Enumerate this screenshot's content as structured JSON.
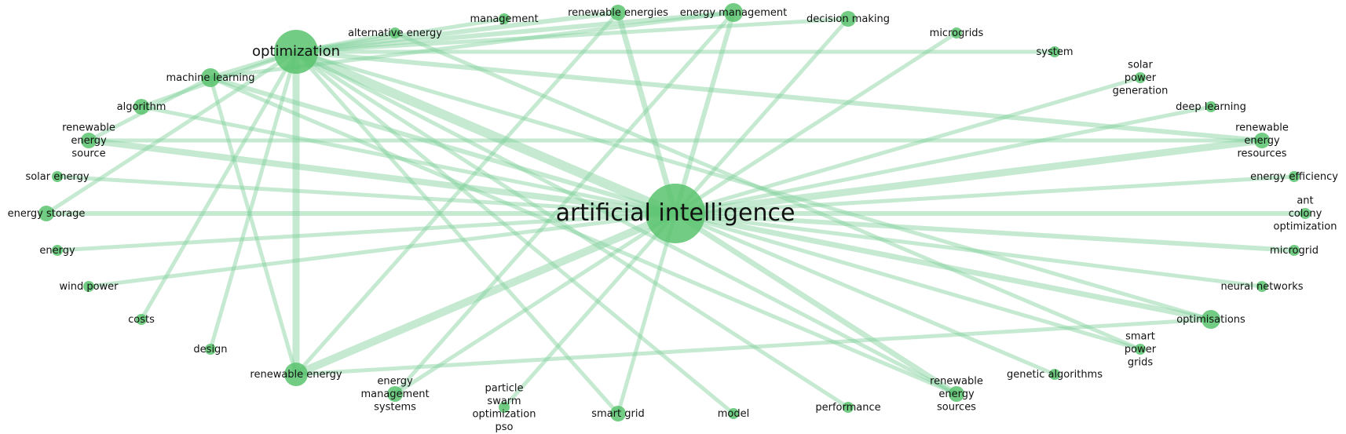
{
  "network": {
    "node_color": "#59c36d",
    "edge_color": "#7fd19a",
    "nodes": [
      {
        "id": "artificial-intelligence",
        "label": [
          "artificial intelligence"
        ]
      },
      {
        "id": "optimization",
        "label": [
          "optimization"
        ]
      },
      {
        "id": "alternative-energy",
        "label": [
          "alternative energy"
        ]
      },
      {
        "id": "management",
        "label": [
          "management"
        ]
      },
      {
        "id": "renewable-energies",
        "label": [
          "renewable energies"
        ]
      },
      {
        "id": "energy-management",
        "label": [
          "energy management"
        ]
      },
      {
        "id": "decision-making",
        "label": [
          "decision making"
        ]
      },
      {
        "id": "microgrids",
        "label": [
          "microgrids"
        ]
      },
      {
        "id": "system",
        "label": [
          "system"
        ]
      },
      {
        "id": "solar-power-generation",
        "label": [
          "solar",
          "power",
          "generation"
        ]
      },
      {
        "id": "deep-learning",
        "label": [
          "deep learning"
        ]
      },
      {
        "id": "renewable-energy-resources",
        "label": [
          "renewable",
          "energy",
          "resources"
        ]
      },
      {
        "id": "energy-efficiency",
        "label": [
          "energy efficiency"
        ]
      },
      {
        "id": "ant-colony-optimization",
        "label": [
          "ant",
          "colony",
          "optimization"
        ]
      },
      {
        "id": "microgrid",
        "label": [
          "microgrid"
        ]
      },
      {
        "id": "neural-networks",
        "label": [
          "neural networks"
        ]
      },
      {
        "id": "optimisations",
        "label": [
          "optimisations"
        ]
      },
      {
        "id": "smart-power-grids",
        "label": [
          "smart",
          "power",
          "grids"
        ]
      },
      {
        "id": "genetic-algorithms",
        "label": [
          "genetic algorithms"
        ]
      },
      {
        "id": "renewable-energy-sources",
        "label": [
          "renewable",
          "energy",
          "sources"
        ]
      },
      {
        "id": "performance",
        "label": [
          "performance"
        ]
      },
      {
        "id": "model",
        "label": [
          "model"
        ]
      },
      {
        "id": "smart-grid",
        "label": [
          "smart grid"
        ]
      },
      {
        "id": "particle-swarm-optimization-pso",
        "label": [
          "particle",
          "swarm",
          "optimization",
          "pso"
        ]
      },
      {
        "id": "energy-management-systems",
        "label": [
          "energy",
          "management",
          "systems"
        ]
      },
      {
        "id": "renewable-energy",
        "label": [
          "renewable energy"
        ]
      },
      {
        "id": "design",
        "label": [
          "design"
        ]
      },
      {
        "id": "costs",
        "label": [
          "costs"
        ]
      },
      {
        "id": "wind-power",
        "label": [
          "wind power"
        ]
      },
      {
        "id": "energy",
        "label": [
          "energy"
        ]
      },
      {
        "id": "energy-storage",
        "label": [
          "energy storage"
        ]
      },
      {
        "id": "solar-energy",
        "label": [
          "solar energy"
        ]
      },
      {
        "id": "renewable-energy-source",
        "label": [
          "renewable",
          "energy",
          "source"
        ]
      },
      {
        "id": "algorithm",
        "label": [
          "algorithm"
        ]
      },
      {
        "id": "machine-learning",
        "label": [
          "machine learning"
        ]
      }
    ],
    "edges": [
      [
        "artificial-intelligence",
        "optimization",
        12
      ],
      [
        "artificial-intelligence",
        "renewable-energy",
        10
      ],
      [
        "artificial-intelligence",
        "renewable-energy-resources",
        9
      ],
      [
        "artificial-intelligence",
        "renewable-energy-source",
        8
      ],
      [
        "artificial-intelligence",
        "machine-learning",
        6
      ],
      [
        "artificial-intelligence",
        "renewable-energies",
        7
      ],
      [
        "artificial-intelligence",
        "energy-management",
        6
      ],
      [
        "artificial-intelligence",
        "decision-making",
        5
      ],
      [
        "artificial-intelligence",
        "microgrids",
        5
      ],
      [
        "artificial-intelligence",
        "solar-power-generation",
        5
      ],
      [
        "artificial-intelligence",
        "deep-learning",
        5
      ],
      [
        "artificial-intelligence",
        "energy-efficiency",
        5
      ],
      [
        "artificial-intelligence",
        "ant-colony-optimization",
        6
      ],
      [
        "artificial-intelligence",
        "microgrid",
        6
      ],
      [
        "artificial-intelligence",
        "neural-networks",
        5
      ],
      [
        "artificial-intelligence",
        "optimisations",
        7
      ],
      [
        "artificial-intelligence",
        "smart-power-grids",
        5
      ],
      [
        "artificial-intelligence",
        "genetic-algorithms",
        5
      ],
      [
        "artificial-intelligence",
        "renewable-energy-sources",
        7
      ],
      [
        "artificial-intelligence",
        "smart-grid",
        5
      ],
      [
        "artificial-intelligence",
        "particle-swarm-optimization-pso",
        5
      ],
      [
        "artificial-intelligence",
        "energy-management-systems",
        5
      ],
      [
        "artificial-intelligence",
        "energy-storage",
        6
      ],
      [
        "artificial-intelligence",
        "energy",
        5
      ],
      [
        "artificial-intelligence",
        "wind-power",
        5
      ],
      [
        "artificial-intelligence",
        "solar-energy",
        5
      ],
      [
        "artificial-intelligence",
        "algorithm",
        5
      ],
      [
        "optimization",
        "renewable-energy",
        9
      ],
      [
        "optimization",
        "alternative-energy",
        5
      ],
      [
        "optimization",
        "management",
        5
      ],
      [
        "optimization",
        "renewable-energies",
        6
      ],
      [
        "optimization",
        "energy-management",
        6
      ],
      [
        "optimization",
        "decision-making",
        5
      ],
      [
        "optimization",
        "system",
        5
      ],
      [
        "optimization",
        "renewable-energy-resources",
        6
      ],
      [
        "optimization",
        "optimisations",
        5
      ],
      [
        "optimization",
        "renewable-energy-sources",
        5
      ],
      [
        "optimization",
        "model",
        5
      ],
      [
        "optimization",
        "smart-grid",
        5
      ],
      [
        "optimization",
        "performance",
        5
      ],
      [
        "optimization",
        "costs",
        5
      ],
      [
        "optimization",
        "design",
        5
      ],
      [
        "optimization",
        "machine-learning",
        6
      ],
      [
        "optimization",
        "algorithm",
        5
      ],
      [
        "optimization",
        "energy-storage",
        5
      ],
      [
        "machine-learning",
        "renewable-energy",
        5
      ],
      [
        "machine-learning",
        "renewable-energy-source",
        5
      ],
      [
        "machine-learning",
        "energy-management",
        5
      ],
      [
        "machine-learning",
        "renewable-energy-sources",
        5
      ],
      [
        "renewable-energy-source",
        "renewable-energy-resources",
        5
      ],
      [
        "renewable-energy",
        "renewable-energies",
        5
      ],
      [
        "renewable-energy",
        "optimisations",
        5
      ],
      [
        "alternative-energy",
        "smart-power-grids",
        5
      ],
      [
        "energy-management-systems",
        "energy-management",
        5
      ]
    ]
  }
}
